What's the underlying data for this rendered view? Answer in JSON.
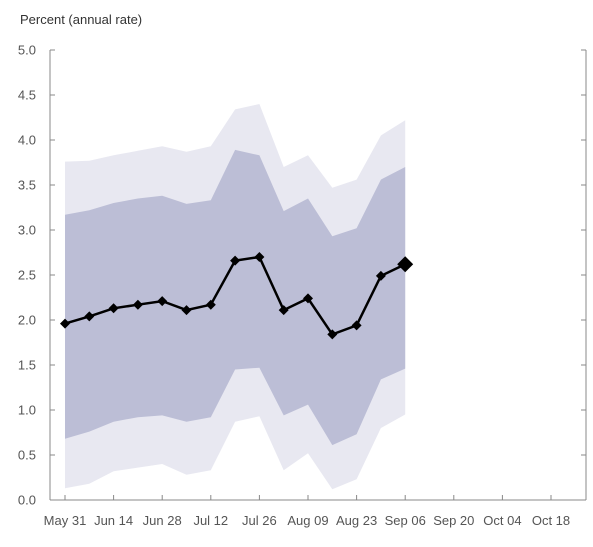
{
  "chart_data": {
    "type": "line",
    "ylabel": "Percent (annual rate)",
    "ylim": [
      0,
      5
    ],
    "yticks": [
      "0.0",
      "0.5",
      "1.0",
      "1.5",
      "2.0",
      "2.5",
      "3.0",
      "3.5",
      "4.0",
      "4.5",
      "5.0"
    ],
    "x_tick_labels": [
      "May 31",
      "Jun 14",
      "Jun 28",
      "Jul 12",
      "Jul 26",
      "Aug 09",
      "Aug 23",
      "Sep 06",
      "Sep 20",
      "Oct 04",
      "Oct 18"
    ],
    "x": [
      "May 31",
      "Jun 07",
      "Jun 14",
      "Jun 21",
      "Jun 28",
      "Jul 05",
      "Jul 12",
      "Jul 19",
      "Jul 26",
      "Aug 02",
      "Aug 09",
      "Aug 16",
      "Aug 23",
      "Aug 30",
      "Sep 06"
    ],
    "series": [
      {
        "values": [
          1.96,
          2.04,
          2.13,
          2.17,
          2.21,
          2.11,
          2.17,
          2.66,
          2.7,
          2.11,
          2.24,
          1.84,
          1.94,
          2.49,
          2.62
        ]
      }
    ],
    "bands": [
      {
        "lower": [
          0.13,
          0.18,
          0.32,
          0.36,
          0.4,
          0.28,
          0.33,
          0.87,
          0.93,
          0.33,
          0.52,
          0.12,
          0.23,
          0.8,
          0.95
        ],
        "upper": [
          3.76,
          3.77,
          3.83,
          3.88,
          3.93,
          3.87,
          3.93,
          4.34,
          4.4,
          3.7,
          3.83,
          3.47,
          3.56,
          4.05,
          4.22
        ],
        "color": "#e8e8f1"
      },
      {
        "lower": [
          0.68,
          0.76,
          0.87,
          0.92,
          0.94,
          0.87,
          0.92,
          1.45,
          1.47,
          0.94,
          1.06,
          0.61,
          0.73,
          1.34,
          1.46
        ],
        "upper": [
          3.17,
          3.22,
          3.3,
          3.35,
          3.38,
          3.29,
          3.33,
          3.89,
          3.83,
          3.21,
          3.35,
          2.93,
          3.02,
          3.56,
          3.7
        ],
        "color": "#bcbed6"
      }
    ],
    "line_color": "#000000",
    "axis_color": "#888888",
    "grid": false,
    "legend": "none"
  }
}
